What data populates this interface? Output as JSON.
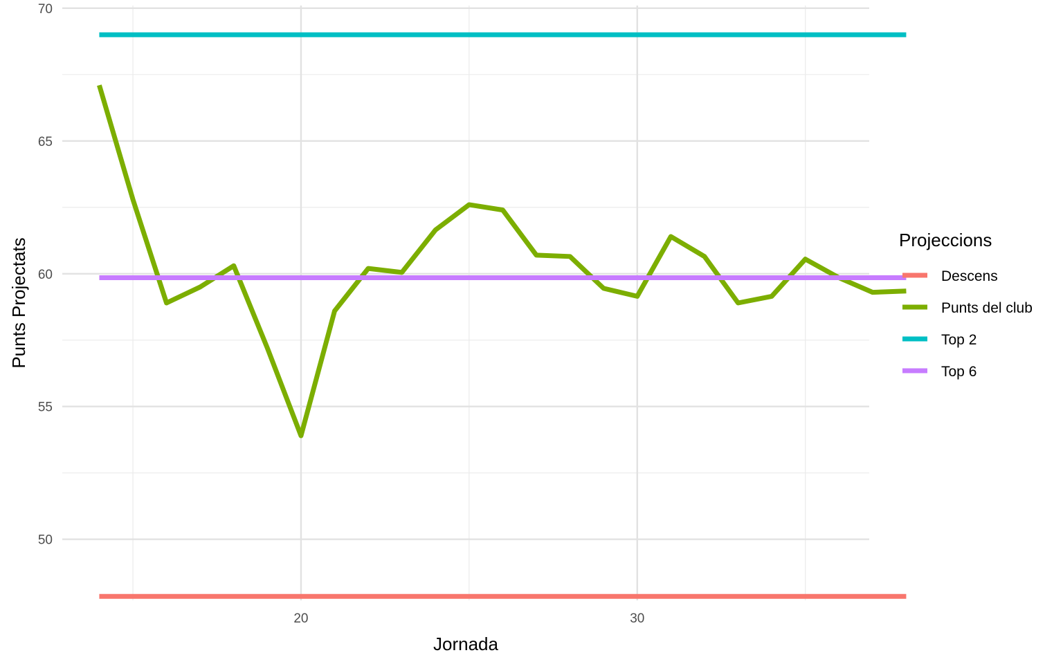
{
  "chart_data": {
    "type": "line",
    "title": "",
    "xlabel": "Jornada",
    "ylabel": "Punts Projectats",
    "xlim": [
      12.9,
      36.9
    ],
    "ylim": [
      47.7,
      70.1
    ],
    "x_ticks": [
      20,
      30
    ],
    "y_ticks": [
      50,
      55,
      60,
      65,
      70
    ],
    "grid": true,
    "legend": {
      "title": "Projeccions",
      "position": "right"
    },
    "series": [
      {
        "name": "Descens",
        "color": "#F8766D",
        "x": [
          14,
          38
        ],
        "y": [
          47.85,
          47.85
        ]
      },
      {
        "name": "Punts del club",
        "color": "#7CAE00",
        "x": [
          14,
          15,
          16,
          17,
          18,
          19,
          20,
          21,
          22,
          23,
          24,
          25,
          26,
          27,
          28,
          29,
          30,
          31,
          32,
          33,
          34,
          35,
          36,
          37,
          38
        ],
        "y": [
          67.1,
          62.8,
          58.9,
          59.5,
          60.3,
          57.2,
          53.9,
          58.6,
          60.2,
          60.05,
          61.65,
          62.6,
          62.4,
          60.7,
          60.65,
          59.45,
          59.15,
          61.4,
          60.65,
          58.9,
          59.15,
          60.55,
          59.85,
          59.3,
          59.35
        ]
      },
      {
        "name": "Top 2",
        "color": "#00BFC4",
        "x": [
          14,
          38
        ],
        "y": [
          69.0,
          69.0
        ]
      },
      {
        "name": "Top 6",
        "color": "#C77CFF",
        "x": [
          14,
          38
        ],
        "y": [
          59.85,
          59.85
        ]
      }
    ]
  }
}
